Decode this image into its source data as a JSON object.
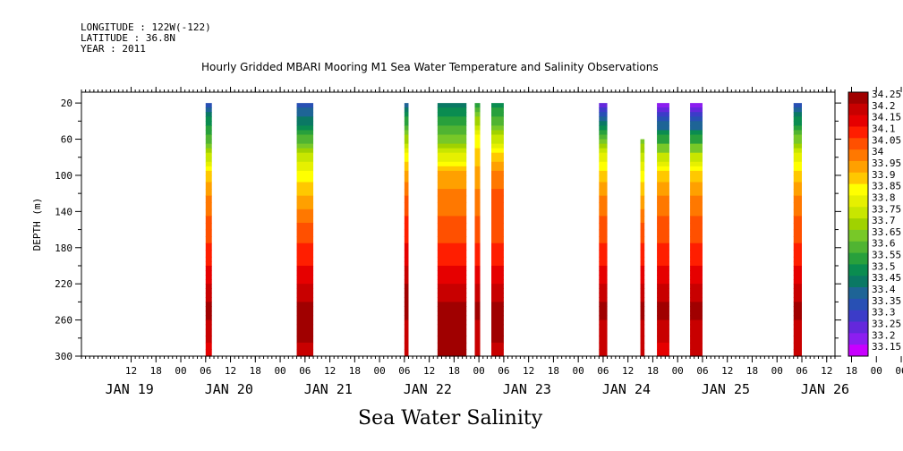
{
  "header": {
    "longitude": "LONGITUDE : 122W(-122)",
    "latitude": "LATITUDE : 36.8N",
    "year": "YEAR : 2011"
  },
  "title": "Hourly Gridded MBARI Mooring M1 Sea Water Temperature and Salinity Observations",
  "variable_label": "Sea Water Salinity",
  "chart_data": {
    "type": "heatmap",
    "title": "Hourly Gridded MBARI Mooring M1 Sea Water Temperature and Salinity Observations",
    "xlabel": "",
    "ylabel": "DEPTH (m)",
    "y_ticks": [
      20,
      60,
      100,
      140,
      180,
      220,
      260,
      300
    ],
    "ylim": [
      300,
      8
    ],
    "x_hour_ticks": [
      "12",
      "18",
      "00",
      "06",
      "12",
      "18",
      "00",
      "06",
      "12",
      "18",
      "00",
      "06",
      "12",
      "18",
      "00",
      "06",
      "12",
      "18",
      "00",
      "06",
      "12",
      "18",
      "00",
      "06",
      "12",
      "18",
      "00",
      "06",
      "12",
      "18",
      "00",
      "06"
    ],
    "x_day_labels": [
      "JAN 19",
      "JAN 20",
      "JAN 21",
      "JAN 22",
      "JAN 23",
      "JAN 24",
      "JAN 25",
      "JAN 26"
    ],
    "x_range_hours_since_jan19_00": [
      0,
      182
    ],
    "colorbar_levels": [
      "34.25",
      "34.2",
      "34.15",
      "34.1",
      "34.05",
      "34",
      "33.95",
      "33.9",
      "33.85",
      "33.8",
      "33.75",
      "33.7",
      "33.65",
      "33.6",
      "33.55",
      "33.5",
      "33.45",
      "33.4",
      "33.35",
      "33.3",
      "33.25",
      "33.2",
      "33.15"
    ],
    "colorbar_colors": [
      "#a00000",
      "#c80000",
      "#e60000",
      "#ff1e00",
      "#ff5000",
      "#ff7800",
      "#ffa000",
      "#ffc800",
      "#ffff00",
      "#e6f000",
      "#c8e600",
      "#a0d200",
      "#78c828",
      "#50b432",
      "#28a03c",
      "#0a8c50",
      "#0a7864",
      "#1e6496",
      "#2850b4",
      "#3c3cc8",
      "#6428dc",
      "#8c1ef0",
      "#c800ff"
    ],
    "segments": [
      {
        "start_hour": 30,
        "end_hour": 31.5,
        "top_depth": 20,
        "profile": [
          33.35,
          33.5,
          33.6,
          33.75,
          33.9,
          34.0,
          34.05,
          34.1,
          34.15,
          34.2,
          34.25,
          34.2,
          34.15
        ]
      },
      {
        "start_hour": 52,
        "end_hour": 56,
        "top_depth": 20,
        "profile": [
          33.35,
          33.45,
          33.6,
          33.75,
          33.85,
          33.95,
          34.05,
          34.1,
          34.15,
          34.2,
          34.25,
          34.25,
          34.2
        ]
      },
      {
        "start_hour": 78,
        "end_hour": 79,
        "top_depth": 20,
        "profile": [
          33.4,
          33.55,
          33.7,
          33.85,
          33.95,
          34.05,
          34.1,
          34.15,
          34.2,
          34.25,
          34.25,
          34.2,
          34.2
        ]
      },
      {
        "start_hour": 86,
        "end_hour": 93,
        "top_depth": 20,
        "profile": [
          33.45,
          33.55,
          33.65,
          33.8,
          33.95,
          34.0,
          34.05,
          34.1,
          34.15,
          34.2,
          34.25,
          34.25,
          34.25
        ]
      },
      {
        "start_hour": 95,
        "end_hour": 96.3,
        "top_depth": 20,
        "profile": [
          33.5,
          33.7,
          33.85,
          33.9,
          33.95,
          34.0,
          34.05,
          34.1,
          34.15,
          34.2,
          34.25,
          34.2,
          34.2
        ]
      },
      {
        "start_hour": 99,
        "end_hour": 102,
        "top_depth": 20,
        "profile": [
          33.5,
          33.6,
          33.75,
          33.9,
          34.0,
          34.05,
          34.05,
          34.1,
          34.15,
          34.2,
          34.25,
          34.25,
          34.2
        ]
      },
      {
        "start_hour": 125,
        "end_hour": 127,
        "top_depth": 20,
        "profile": [
          33.2,
          33.4,
          33.65,
          33.8,
          33.9,
          34.0,
          34.05,
          34.1,
          34.15,
          34.2,
          34.25,
          34.2,
          34.2
        ]
      },
      {
        "start_hour": 135,
        "end_hour": 136,
        "top_depth": 60,
        "profile": [
          33.65,
          33.65,
          33.65,
          33.75,
          33.85,
          33.95,
          34.05,
          34.1,
          34.15,
          34.2,
          34.25,
          34.2,
          34.2
        ]
      },
      {
        "start_hour": 139,
        "end_hour": 142,
        "top_depth": 20,
        "profile": [
          33.2,
          33.35,
          33.55,
          33.75,
          33.9,
          34.0,
          34.05,
          34.1,
          34.15,
          34.2,
          34.25,
          34.2,
          34.15
        ]
      },
      {
        "start_hour": 147,
        "end_hour": 150,
        "top_depth": 20,
        "profile": [
          33.2,
          33.35,
          33.55,
          33.75,
          33.9,
          34.0,
          34.05,
          34.1,
          34.15,
          34.2,
          34.25,
          34.2,
          34.2
        ]
      },
      {
        "start_hour": 172,
        "end_hour": 174,
        "top_depth": 20,
        "profile": [
          33.35,
          33.5,
          33.65,
          33.8,
          33.9,
          34.0,
          34.05,
          34.1,
          34.15,
          34.2,
          34.25,
          34.2,
          34.2
        ]
      }
    ],
    "profile_depths": [
      20,
      40,
      60,
      80,
      100,
      130,
      160,
      190,
      210,
      230,
      250,
      270,
      300
    ],
    "grid": false,
    "legend_placement": "right"
  }
}
